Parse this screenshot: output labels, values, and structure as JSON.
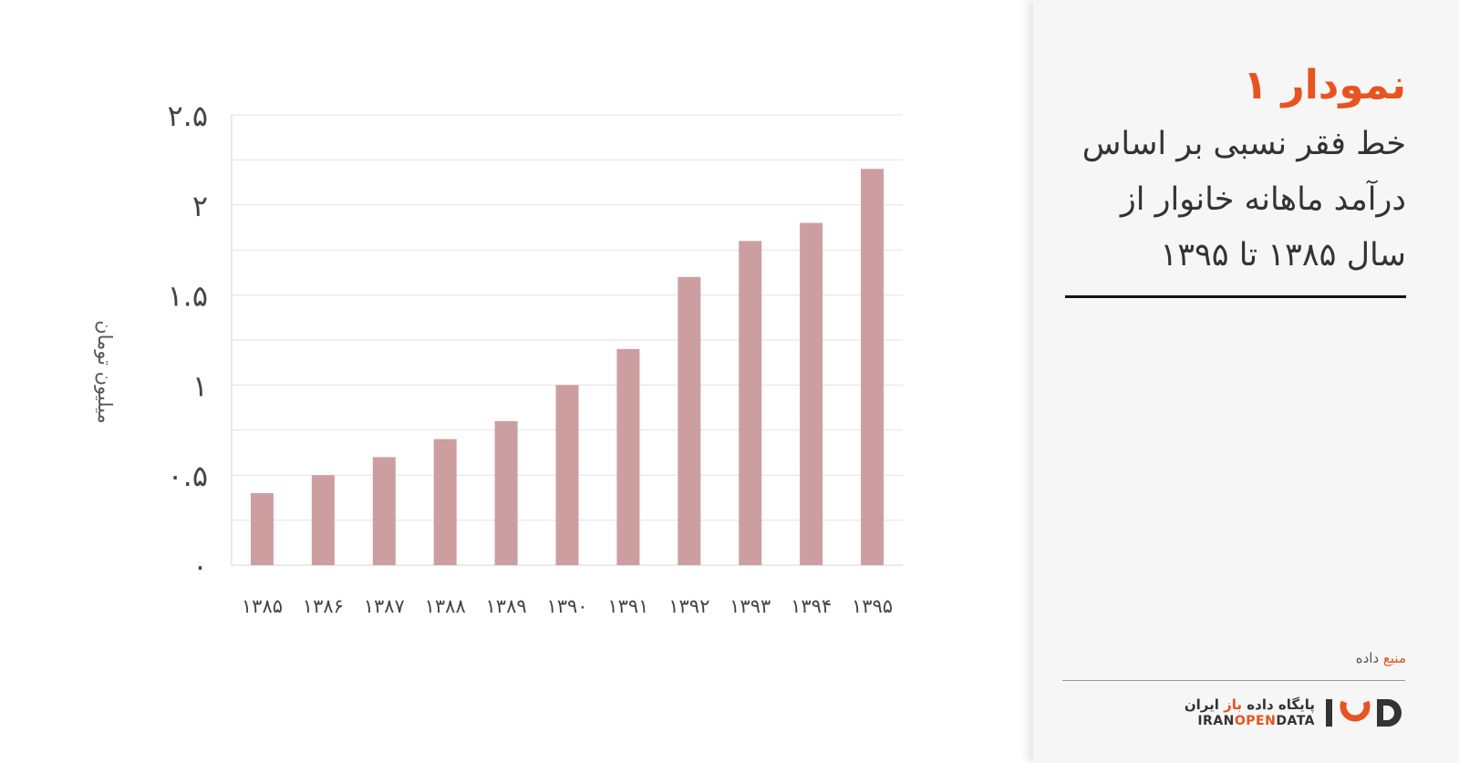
{
  "chart_data": {
    "type": "bar",
    "title": "نمودار ۱",
    "subtitle_lines": [
      "خط فقر نسبی بر اساس",
      "درآمد ماهانه خانوار از",
      "سال ۱۳۸۵ تا ۱۳۹۵"
    ],
    "ylabel": "میلیون تومان",
    "xlabel": "",
    "categories": [
      "۱۳۸۵",
      "۱۳۸۶",
      "۱۳۸۷",
      "۱۳۸۸",
      "۱۳۸۹",
      "۱۳۹۰",
      "۱۳۹۱",
      "۱۳۹۲",
      "۱۳۹۳",
      "۱۳۹۴",
      "۱۳۹۵"
    ],
    "values": [
      0.4,
      0.5,
      0.6,
      0.7,
      0.8,
      1.0,
      1.2,
      1.6,
      1.8,
      1.9,
      2.2
    ],
    "ylim": [
      0,
      2.5
    ],
    "grid_step": 0.25,
    "y_ticks": [
      {
        "value": 0,
        "label": "۰"
      },
      {
        "value": 0.5,
        "label": "۰.۵"
      },
      {
        "value": 1,
        "label": "۱"
      },
      {
        "value": 1.5,
        "label": "۱.۵"
      },
      {
        "value": 2,
        "label": "۲"
      },
      {
        "value": 2.5,
        "label": "۲.۵"
      }
    ],
    "grid": true,
    "legend": "none",
    "bar_color": "#cd9ea0",
    "grid_color": "#e3e3e3",
    "axis_color": "#d6d6d6"
  },
  "sidebar": {
    "title": "نمودار ۱",
    "subtitle_lines": [
      "خط فقر نسبی بر اساس",
      "درآمد ماهانه خانوار از",
      "سال ۱۳۸۵ تا ۱۳۹۵"
    ],
    "source_accent": "منبع",
    "source_rest": " داده",
    "logo": {
      "fa_before": "پایگاه داده ",
      "fa_accent": "باز",
      "fa_after": " ایران",
      "en_before": "IRAN",
      "en_accent": "OPEN",
      "en_after": "DATA",
      "mark_icon": "iod-logo-icon"
    }
  },
  "colors": {
    "accent": "#e8531f",
    "text_dark": "#333333",
    "sidebar_bg": "#f6f6f6"
  }
}
